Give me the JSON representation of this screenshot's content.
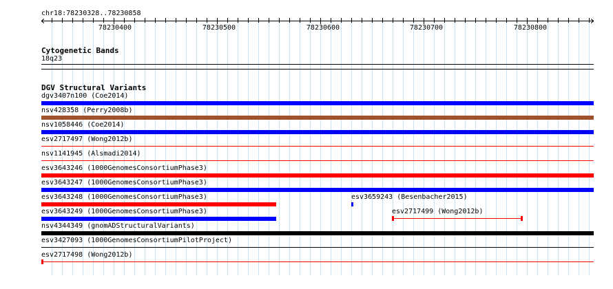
{
  "location": "chr18:78230328..78230858",
  "ruler": {
    "ticks": [
      "78230400",
      "78230500",
      "78230600",
      "78230700",
      "78230800"
    ]
  },
  "cytobands": {
    "title": "Cytogenetic Bands",
    "band": "18q23"
  },
  "dgv": {
    "title": "DGV Structural Variants",
    "features": [
      {
        "id": "dgv3407n100",
        "study": "(Coe2014)",
        "color": "#0000ff",
        "style": "thick"
      },
      {
        "id": "nsv428358",
        "study": "(Perry2008b)",
        "color": "#a0522d",
        "style": "thick"
      },
      {
        "id": "nsv1058446",
        "study": "(Coe2014)",
        "color": "#0000ff",
        "style": "thick"
      },
      {
        "id": "esv2717497",
        "study": "(Wong2012b)",
        "color": "#ff0000",
        "style": "thin"
      },
      {
        "id": "nsv1141945",
        "study": "(Alsmadi2014)",
        "color": "#ff0000",
        "style": "thin"
      },
      {
        "id": "esv3643246",
        "study": "(1000GenomesConsortiumPhase3)",
        "color": "#ff0000",
        "style": "thick"
      },
      {
        "id": "esv3643247",
        "study": "(1000GenomesConsortiumPhase3)",
        "color": "#0000ff",
        "style": "thick"
      },
      {
        "id": "esv3643248",
        "study": "(1000GenomesConsortiumPhase3)",
        "color": "#ff0000",
        "style": "thick"
      },
      {
        "id": "esv3659243",
        "study": "(Besenbacher2015)",
        "color": "#0000ff",
        "style": "thick"
      },
      {
        "id": "esv3643249",
        "study": "(1000GenomesConsortiumPhase3)",
        "color": "#0000ff",
        "style": "thick"
      },
      {
        "id": "esv2717499",
        "study": "(Wong2012b)",
        "color": "#ff0000",
        "style": "capped"
      },
      {
        "id": "nsv4344349",
        "study": "(gnomADStructuralVariants)",
        "color": "#000000",
        "style": "thick"
      },
      {
        "id": "esv3427093",
        "study": "(1000GenomesConsortiumPilotProject)",
        "color": "#000000",
        "style": "thin"
      },
      {
        "id": "esv2717498",
        "study": "(Wong2012b)",
        "color": "#ff0000",
        "style": "capped"
      }
    ]
  }
}
